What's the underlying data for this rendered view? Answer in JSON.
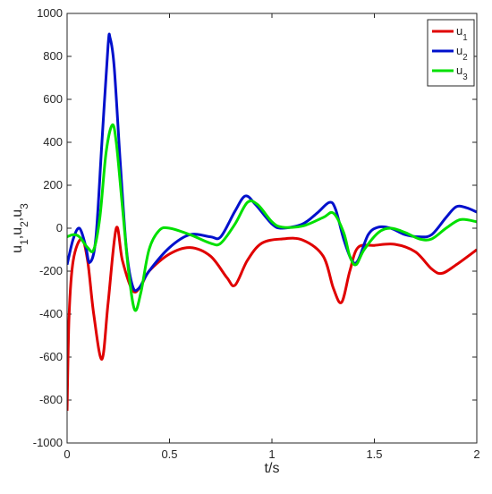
{
  "chart_data": {
    "type": "line",
    "xlabel": "t/s",
    "ylabel": "u1,u2,u3",
    "xlim": [
      0,
      2
    ],
    "ylim": [
      -1000,
      1000
    ],
    "xticks": [
      0,
      0.5,
      1,
      1.5,
      2
    ],
    "yticks": [
      -1000,
      -800,
      -600,
      -400,
      -200,
      0,
      200,
      400,
      600,
      800,
      1000
    ],
    "legend": "upper right",
    "series": [
      {
        "name": "u1",
        "color": "#e00000",
        "x": [
          0,
          0.01,
          0.03,
          0.07,
          0.1,
          0.13,
          0.17,
          0.2,
          0.24,
          0.27,
          0.32,
          0.36,
          0.4,
          0.5,
          0.6,
          0.7,
          0.78,
          0.82,
          0.88,
          0.95,
          1.05,
          1.15,
          1.25,
          1.3,
          1.34,
          1.38,
          1.42,
          1.5,
          1.6,
          1.7,
          1.78,
          1.83,
          1.9,
          2
        ],
        "values": [
          -850,
          -400,
          -150,
          -50,
          -150,
          -400,
          -610,
          -350,
          0,
          -150,
          -290,
          -270,
          -200,
          -120,
          -90,
          -130,
          -230,
          -265,
          -150,
          -70,
          -50,
          -55,
          -130,
          -280,
          -345,
          -200,
          -90,
          -80,
          -75,
          -110,
          -190,
          -210,
          -170,
          -100
        ]
      },
      {
        "name": "u2",
        "color": "#0010cc",
        "x": [
          0,
          0.03,
          0.06,
          0.09,
          0.11,
          0.14,
          0.17,
          0.2,
          0.21,
          0.23,
          0.26,
          0.29,
          0.32,
          0.35,
          0.4,
          0.5,
          0.6,
          0.7,
          0.75,
          0.82,
          0.87,
          0.92,
          1.0,
          1.05,
          1.15,
          1.22,
          1.28,
          1.31,
          1.35,
          1.39,
          1.42,
          1.47,
          1.52,
          1.58,
          1.65,
          1.72,
          1.78,
          1.85,
          1.9,
          1.95,
          2
        ],
        "values": [
          -170,
          -50,
          0,
          -80,
          -160,
          -50,
          400,
          850,
          885,
          750,
          300,
          -100,
          -270,
          -280,
          -200,
          -90,
          -30,
          -40,
          -40,
          80,
          150,
          110,
          20,
          0,
          20,
          70,
          120,
          90,
          -50,
          -150,
          -150,
          -30,
          5,
          0,
          -30,
          -40,
          -30,
          50,
          100,
          95,
          75
        ]
      },
      {
        "name": "u3",
        "color": "#00e000",
        "x": [
          0,
          0.03,
          0.06,
          0.1,
          0.13,
          0.16,
          0.19,
          0.22,
          0.24,
          0.27,
          0.3,
          0.33,
          0.36,
          0.4,
          0.45,
          0.5,
          0.6,
          0.7,
          0.75,
          0.82,
          0.88,
          0.93,
          1.0,
          1.05,
          1.15,
          1.25,
          1.3,
          1.35,
          1.38,
          1.41,
          1.45,
          1.52,
          1.58,
          1.65,
          1.72,
          1.78,
          1.85,
          1.92,
          2
        ],
        "values": [
          -40,
          -30,
          -40,
          -90,
          -100,
          50,
          350,
          480,
          400,
          100,
          -200,
          -380,
          -300,
          -100,
          -10,
          0,
          -30,
          -70,
          -70,
          20,
          120,
          110,
          30,
          5,
          10,
          50,
          70,
          -20,
          -130,
          -170,
          -100,
          -20,
          0,
          -20,
          -50,
          -50,
          0,
          40,
          30
        ]
      }
    ]
  }
}
